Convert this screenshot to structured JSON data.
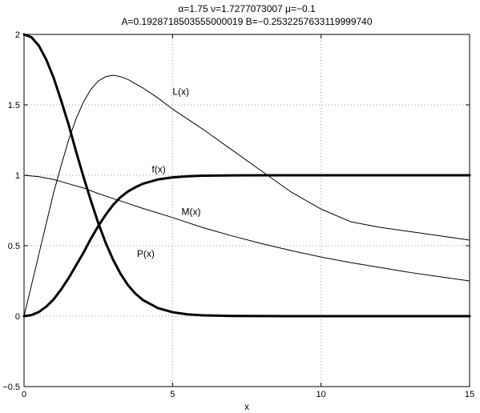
{
  "chart_data": {
    "type": "line",
    "title_lines": [
      "α=1.75     ν=1.7277073007     μ=−0.1",
      "A=0.1928718503555000019     B=−0.2532257633119999740"
    ],
    "xlabel": "x",
    "ylabel": "",
    "xlim": [
      0,
      15
    ],
    "ylim": [
      -0.5,
      2
    ],
    "x_ticks": [
      0,
      5,
      10,
      15
    ],
    "y_ticks": [
      -0.5,
      0,
      0.5,
      1,
      1.5,
      2
    ],
    "x_tick_labels": [
      "0",
      "5",
      "10",
      "15"
    ],
    "y_tick_labels": [
      "−0.5",
      "0",
      "0.5",
      "1",
      "1.5",
      "2"
    ],
    "grid": true,
    "grid_style": "dotted",
    "legend": "none",
    "series": [
      {
        "name": "P(x)",
        "label_text": "P(x)",
        "label_at": [
          3.8,
          0.42
        ],
        "color": "#000000",
        "bold": true,
        "x": [
          0,
          0.25,
          0.5,
          0.75,
          1,
          1.25,
          1.5,
          1.75,
          2,
          2.25,
          2.5,
          2.75,
          3,
          3.25,
          3.5,
          3.75,
          4,
          4.5,
          5,
          5.5,
          6,
          7,
          8,
          9,
          10,
          11,
          12,
          13,
          14,
          15
        ],
        "y": [
          2,
          1.98,
          1.92,
          1.82,
          1.69,
          1.53,
          1.36,
          1.17,
          0.99,
          0.82,
          0.66,
          0.52,
          0.4,
          0.3,
          0.22,
          0.16,
          0.115,
          0.058,
          0.028,
          0.013,
          0.006,
          0.0015,
          0.0004,
          0.0001,
          0,
          0,
          0,
          0,
          0,
          0
        ]
      },
      {
        "name": "f(x)",
        "label_text": "f(x)",
        "label_at": [
          4.3,
          1.02
        ],
        "color": "#000000",
        "bold": true,
        "x": [
          0,
          0.25,
          0.5,
          0.75,
          1,
          1.25,
          1.5,
          1.75,
          2,
          2.25,
          2.5,
          2.75,
          3,
          3.25,
          3.5,
          3.75,
          4,
          4.5,
          5,
          5.5,
          6,
          7,
          8,
          9,
          10,
          11,
          12,
          13,
          14,
          15
        ],
        "y": [
          0,
          0.008,
          0.03,
          0.068,
          0.12,
          0.19,
          0.27,
          0.36,
          0.45,
          0.55,
          0.64,
          0.72,
          0.79,
          0.845,
          0.885,
          0.915,
          0.94,
          0.97,
          0.985,
          0.993,
          0.997,
          0.999,
          1,
          1,
          1,
          1,
          1,
          1,
          1,
          1
        ]
      },
      {
        "name": "L(x)",
        "label_text": "L(x)",
        "label_at": [
          5.0,
          1.57
        ],
        "color": "#000000",
        "bold": false,
        "x": [
          0,
          0.25,
          0.5,
          0.75,
          1,
          1.25,
          1.5,
          1.75,
          2,
          2.25,
          2.5,
          2.75,
          3,
          3.25,
          3.5,
          4,
          4.5,
          5,
          5.5,
          6,
          7,
          8,
          9,
          10,
          11,
          12,
          13,
          14,
          15
        ],
        "y": [
          0,
          0.22,
          0.44,
          0.66,
          0.88,
          1.07,
          1.25,
          1.4,
          1.52,
          1.61,
          1.67,
          1.7,
          1.71,
          1.7,
          1.68,
          1.62,
          1.55,
          1.47,
          1.4,
          1.33,
          1.18,
          1.03,
          0.88,
          0.76,
          0.67,
          0.63,
          0.6,
          0.57,
          0.54
        ]
      },
      {
        "name": "M(x)",
        "label_text": "M(x)",
        "label_at": [
          5.3,
          0.72
        ],
        "color": "#000000",
        "bold": false,
        "x": [
          0,
          0.5,
          1,
          1.5,
          2,
          2.5,
          3,
          3.5,
          4,
          5,
          6,
          7,
          8,
          9,
          10,
          11,
          12,
          13,
          14,
          15
        ],
        "y": [
          1,
          0.99,
          0.97,
          0.94,
          0.91,
          0.87,
          0.835,
          0.8,
          0.765,
          0.7,
          0.63,
          0.57,
          0.515,
          0.465,
          0.42,
          0.38,
          0.345,
          0.31,
          0.28,
          0.25
        ]
      }
    ]
  }
}
